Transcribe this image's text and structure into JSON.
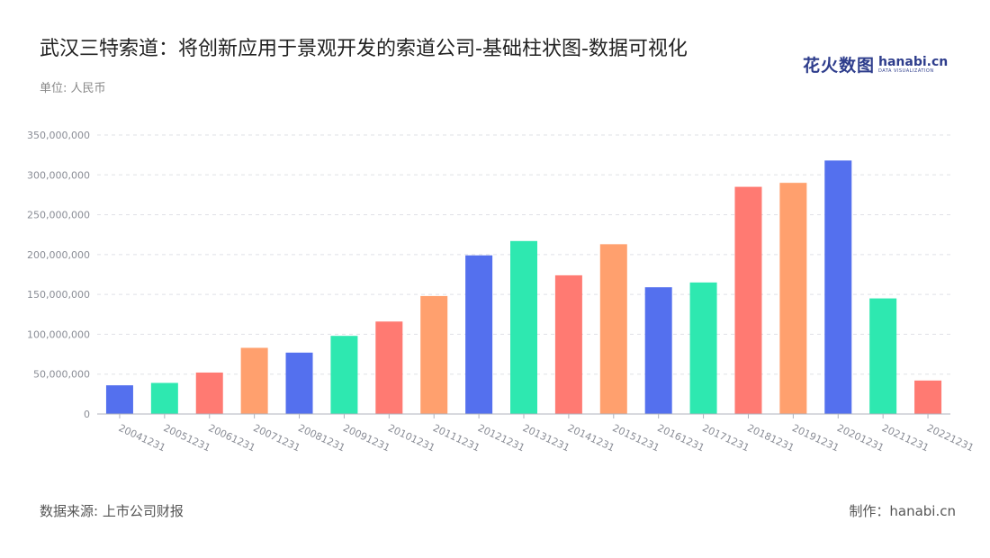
{
  "header": {
    "title": "武汉三特索道：将创新应用于景观开发的索道公司-基础柱状图-数据可视化",
    "unit": "单位: 人民币",
    "logo_cn": "花火数图",
    "logo_en": "hanabi.cn",
    "logo_sub": "DATA VISUALIZATION"
  },
  "footer": {
    "source": "数据来源: 上市公司财报",
    "maker": "制作：hanabi.cn"
  },
  "colors": [
    "#5470ee",
    "#2ee8b0",
    "#ff7a72",
    "#ffa06e"
  ],
  "chart_data": {
    "type": "bar",
    "categories": [
      "20041231",
      "20051231",
      "20061231",
      "20071231",
      "20081231",
      "20091231",
      "20101231",
      "20111231",
      "20121231",
      "20131231",
      "20141231",
      "20151231",
      "20161231",
      "20171231",
      "20181231",
      "20191231",
      "20201231",
      "20211231",
      "20221231"
    ],
    "values": [
      36000000,
      39000000,
      52000000,
      83000000,
      77000000,
      98000000,
      116000000,
      148000000,
      199000000,
      217000000,
      174000000,
      213000000,
      159000000,
      165000000,
      285000000,
      290000000,
      318000000,
      145000000,
      42000000
    ],
    "yticks": [
      "0",
      "50,000,000",
      "100,000,000",
      "150,000,000",
      "200,000,000",
      "250,000,000",
      "300,000,000",
      "350,000,000"
    ],
    "ylim": [
      0,
      350000000
    ],
    "grid": true,
    "bar_colors": [
      "#5470ee",
      "#2ee8b0",
      "#ff7a72",
      "#ffa06e",
      "#5470ee",
      "#2ee8b0",
      "#ff7a72",
      "#ffa06e",
      "#5470ee",
      "#2ee8b0",
      "#ff7a72",
      "#ffa06e",
      "#5470ee",
      "#2ee8b0",
      "#ff7a72",
      "#ffa06e",
      "#5470ee",
      "#2ee8b0",
      "#ff7a72"
    ]
  }
}
